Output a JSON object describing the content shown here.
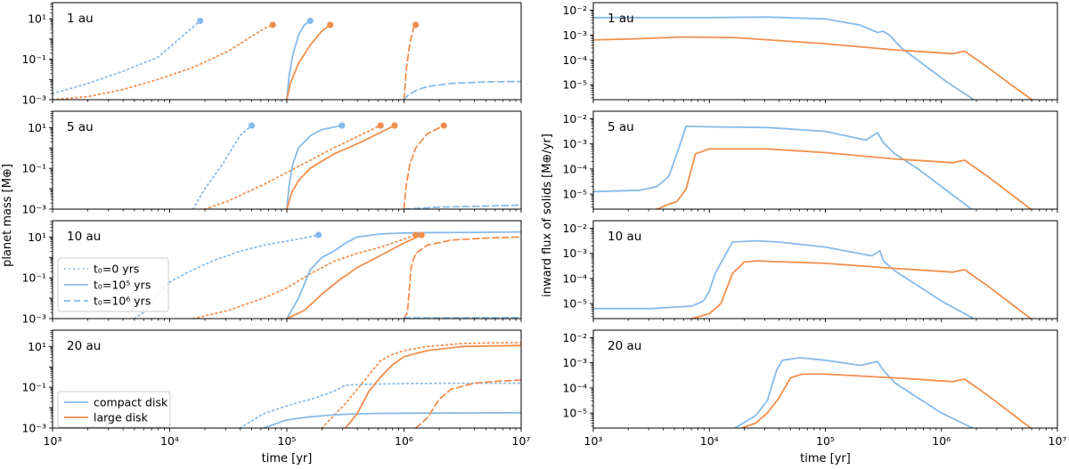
{
  "colors": {
    "compact": "#85bbea",
    "large": "#f28e4c"
  },
  "left": {
    "ylabel": "planet mass [M⊕]",
    "xlabel": "time [yr]",
    "xticks": [
      "10³",
      "10⁴",
      "10⁵",
      "10⁶",
      "10⁷"
    ],
    "yticks": [
      "10⁻³",
      "10⁻¹",
      "10¹"
    ],
    "xlim_log10": [
      3,
      7
    ],
    "ylim_log10": [
      -3,
      1.8
    ]
  },
  "right": {
    "ylabel": "inward flux of solids [M⊕/yr]",
    "xlabel": "time [yr]",
    "xticks": [
      "10³",
      "10⁴",
      "10⁵",
      "10⁶",
      "10⁷"
    ],
    "yticks": [
      "10⁻⁵",
      "10⁻⁴",
      "10⁻³",
      "10⁻²"
    ],
    "xlim_log10": [
      3,
      7
    ],
    "ylim_log10": [
      -5.6,
      -1.7
    ]
  },
  "legend_t0": [
    {
      "style": "dotted",
      "label": "t₀=0 yrs"
    },
    {
      "style": "solid",
      "label": "t₀=10⁵ yrs"
    },
    {
      "style": "dashed",
      "label": "t₀=10⁶ yrs"
    }
  ],
  "legend_disk": [
    {
      "series": "compact",
      "label": "compact disk"
    },
    {
      "series": "large",
      "label": "large disk"
    }
  ],
  "chart_data": [
    {
      "type": "line",
      "panel": "left",
      "title": "1 au",
      "series": [
        {
          "disk": "compact",
          "style": "dotted",
          "x": [
            3,
            3.3,
            3.6,
            3.9,
            4.2,
            4.26
          ],
          "y": [
            -2.7,
            -2.2,
            -1.6,
            -0.9,
            0.6,
            0.9
          ],
          "end_marker": true
        },
        {
          "disk": "large",
          "style": "dotted",
          "x": [
            3,
            3.3,
            3.6,
            3.9,
            4.2,
            4.5,
            4.8,
            4.88
          ],
          "y": [
            -3,
            -2.85,
            -2.5,
            -2,
            -1.4,
            -0.6,
            0.5,
            0.7
          ],
          "end_marker": true
        },
        {
          "disk": "compact",
          "style": "solid",
          "x": [
            5,
            5.02,
            5.05,
            5.1,
            5.15,
            5.2
          ],
          "y": [
            -3,
            -1.8,
            -0.8,
            0.2,
            0.7,
            0.9
          ],
          "end_marker": true
        },
        {
          "disk": "large",
          "style": "solid",
          "x": [
            5,
            5.03,
            5.1,
            5.2,
            5.3,
            5.37
          ],
          "y": [
            -3,
            -2.2,
            -1.2,
            -0.3,
            0.4,
            0.7
          ],
          "end_marker": true
        },
        {
          "disk": "large",
          "style": "dashed",
          "x": [
            6,
            6.02,
            6.05,
            6.08,
            6.1
          ],
          "y": [
            -3,
            -1.5,
            -0.2,
            0.5,
            0.7
          ],
          "end_marker": true
        },
        {
          "disk": "compact",
          "style": "dashed",
          "x": [
            6,
            6.03,
            6.1,
            6.2,
            6.4,
            6.7,
            7
          ],
          "y": [
            -3,
            -2.8,
            -2.55,
            -2.35,
            -2.2,
            -2.12,
            -2.1
          ],
          "end_marker": false
        }
      ]
    },
    {
      "type": "line",
      "panel": "left",
      "title": "5 au",
      "series": [
        {
          "disk": "compact",
          "style": "dotted",
          "x": [
            4.2,
            4.3,
            4.45,
            4.6,
            4.7
          ],
          "y": [
            -3,
            -2,
            -0.8,
            0.6,
            1.1
          ],
          "end_marker": true
        },
        {
          "disk": "large",
          "style": "dotted",
          "x": [
            4.3,
            4.5,
            4.8,
            5.1,
            5.4,
            5.8
          ],
          "y": [
            -3,
            -2.6,
            -1.8,
            -0.9,
            0,
            1.1
          ],
          "end_marker": true
        },
        {
          "disk": "compact",
          "style": "solid",
          "x": [
            5,
            5.02,
            5.05,
            5.1,
            5.2,
            5.3,
            5.47
          ],
          "y": [
            -3,
            -1.8,
            -0.8,
            0,
            0.6,
            0.9,
            1.1
          ],
          "end_marker": true
        },
        {
          "disk": "large",
          "style": "solid",
          "x": [
            5,
            5.04,
            5.1,
            5.2,
            5.4,
            5.6,
            5.92
          ],
          "y": [
            -3,
            -2.2,
            -1.6,
            -1,
            -0.3,
            0.2,
            1.1
          ],
          "end_marker": true
        },
        {
          "disk": "large",
          "style": "dashed",
          "x": [
            6,
            6.02,
            6.05,
            6.1,
            6.2,
            6.34
          ],
          "y": [
            -3,
            -1.8,
            -0.8,
            0,
            0.7,
            1.1
          ],
          "end_marker": true
        },
        {
          "disk": "compact",
          "style": "dashed",
          "x": [
            6,
            6.3,
            6.7,
            7
          ],
          "y": [
            -3,
            -2.9,
            -2.85,
            -2.8
          ],
          "end_marker": false
        }
      ]
    },
    {
      "type": "line",
      "panel": "left",
      "title": "10 au",
      "series": [
        {
          "disk": "compact",
          "style": "dotted",
          "x": [
            3.7,
            3.8,
            3.9,
            4,
            4.2,
            4.4,
            4.6,
            4.8,
            5.1,
            5.27
          ],
          "y": [
            -3,
            -2.6,
            -1.8,
            -1.2,
            -0.6,
            -0.1,
            0.3,
            0.6,
            0.9,
            1.1
          ],
          "end_marker": true
        },
        {
          "disk": "large",
          "style": "dotted",
          "x": [
            4.2,
            4.5,
            4.8,
            5,
            5.2,
            5.4,
            5.6,
            5.8,
            6.1
          ],
          "y": [
            -3,
            -2.6,
            -2,
            -1.5,
            -0.8,
            -0.2,
            0.2,
            0.5,
            1.1
          ],
          "end_marker": true
        },
        {
          "disk": "compact",
          "style": "solid",
          "x": [
            5,
            5.1,
            5.2,
            5.3,
            5.4,
            5.5,
            5.6,
            5.8,
            6,
            6.3,
            6.6,
            7
          ],
          "y": [
            -3,
            -2,
            -0.6,
            0,
            0.3,
            0.7,
            1,
            1.15,
            1.2,
            1.22,
            1.23,
            1.25
          ],
          "end_marker": false
        },
        {
          "disk": "large",
          "style": "solid",
          "x": [
            5,
            5.15,
            5.3,
            5.45,
            5.6,
            5.8,
            6,
            6.15
          ],
          "y": [
            -3,
            -2.6,
            -1.8,
            -1.1,
            -0.5,
            0.1,
            0.7,
            1.1
          ],
          "end_marker": true
        },
        {
          "disk": "large",
          "style": "dashed",
          "x": [
            6,
            6.03,
            6.06,
            6.1,
            6.2,
            6.4,
            6.7,
            7
          ],
          "y": [
            -3,
            -2.7,
            -0.5,
            0.2,
            0.6,
            0.85,
            0.95,
            1
          ],
          "end_marker": false
        },
        {
          "disk": "compact",
          "style": "dashed",
          "x": [
            6,
            6.5,
            7
          ],
          "y": [
            -2.97,
            -2.96,
            -2.95
          ],
          "end_marker": false
        }
      ]
    },
    {
      "type": "line",
      "panel": "left",
      "title": "20 au",
      "series": [
        {
          "disk": "compact",
          "style": "dotted",
          "x": [
            4.6,
            4.8,
            5,
            5.2,
            5.4,
            5.5,
            5.7,
            6,
            6.5,
            7
          ],
          "y": [
            -3,
            -2.3,
            -1.9,
            -1.6,
            -1.2,
            -0.9,
            -0.85,
            -0.82,
            -0.8,
            -0.8
          ],
          "end_marker": false
        },
        {
          "disk": "large",
          "style": "dotted",
          "x": [
            5.3,
            5.5,
            5.7,
            5.8,
            5.9,
            6,
            6.2,
            6.5,
            7
          ],
          "y": [
            -3,
            -1.8,
            -0.4,
            0.3,
            0.6,
            0.8,
            1,
            1.15,
            1.2
          ],
          "end_marker": false
        },
        {
          "disk": "compact",
          "style": "solid",
          "x": [
            4.8,
            5,
            5.2,
            5.4,
            5.6,
            5.8,
            6,
            6.5,
            7
          ],
          "y": [
            -3,
            -2.6,
            -2.45,
            -2.35,
            -2.3,
            -2.28,
            -2.27,
            -2.26,
            -2.25
          ],
          "end_marker": false
        },
        {
          "disk": "large",
          "style": "solid",
          "x": [
            5.5,
            5.6,
            5.7,
            5.8,
            5.9,
            6,
            6.2,
            6.5,
            7
          ],
          "y": [
            -3,
            -2.3,
            -1.2,
            -0.5,
            0.1,
            0.5,
            0.8,
            1,
            1.05
          ],
          "end_marker": false
        },
        {
          "disk": "large",
          "style": "dashed",
          "x": [
            6.1,
            6.2,
            6.3,
            6.4,
            6.6,
            6.8,
            7
          ],
          "y": [
            -3,
            -2.5,
            -1.6,
            -1.1,
            -0.8,
            -0.7,
            -0.65
          ],
          "end_marker": false
        }
      ]
    },
    {
      "type": "line",
      "panel": "right",
      "title": "1 au",
      "series": [
        {
          "disk": "compact",
          "style": "solid",
          "x": [
            3,
            4,
            4.5,
            5,
            5.3,
            5.45,
            5.5,
            5.55,
            5.65,
            5.85,
            6.05,
            6.28
          ],
          "y": [
            -2.3,
            -2.3,
            -2.28,
            -2.35,
            -2.6,
            -2.9,
            -2.85,
            -3,
            -3.5,
            -4.2,
            -4.9,
            -5.6
          ],
          "end_marker": false
        },
        {
          "disk": "large",
          "style": "solid",
          "x": [
            3,
            3.4,
            3.75,
            4.2,
            5,
            5.6,
            6.1,
            6.2,
            6.4,
            6.6,
            6.78
          ],
          "y": [
            -3.2,
            -3.15,
            -3.08,
            -3.1,
            -3.35,
            -3.6,
            -3.75,
            -3.65,
            -4.3,
            -5,
            -5.6
          ],
          "end_marker": false
        }
      ]
    },
    {
      "type": "line",
      "panel": "right",
      "title": "5 au",
      "series": [
        {
          "disk": "compact",
          "style": "solid",
          "x": [
            3,
            3.4,
            3.55,
            3.65,
            3.75,
            3.8,
            4,
            4.5,
            5,
            5.35,
            5.45,
            5.5,
            5.6,
            5.8,
            6,
            6.26
          ],
          "y": [
            -4.9,
            -4.85,
            -4.7,
            -4.3,
            -3,
            -2.3,
            -2.32,
            -2.35,
            -2.5,
            -2.85,
            -2.55,
            -2.95,
            -3.4,
            -4,
            -4.7,
            -5.6
          ],
          "end_marker": false
        },
        {
          "disk": "large",
          "style": "solid",
          "x": [
            3.55,
            3.65,
            3.72,
            3.8,
            3.88,
            4,
            4.5,
            5,
            5.6,
            6.1,
            6.2,
            6.4,
            6.6,
            6.77
          ],
          "y": [
            -5.6,
            -5.4,
            -5.3,
            -4.8,
            -3.4,
            -3.2,
            -3.2,
            -3.35,
            -3.6,
            -3.75,
            -3.65,
            -4.3,
            -5,
            -5.6
          ],
          "end_marker": false
        }
      ]
    },
    {
      "type": "line",
      "panel": "right",
      "title": "10 au",
      "series": [
        {
          "disk": "compact",
          "style": "solid",
          "x": [
            3,
            3.5,
            3.85,
            3.95,
            4,
            4.05,
            4.2,
            4.4,
            4.6,
            5,
            5.4,
            5.47,
            5.5,
            5.6,
            5.8,
            6,
            6.28
          ],
          "y": [
            -5.2,
            -5.2,
            -5.1,
            -4.9,
            -4.5,
            -3.8,
            -2.55,
            -2.5,
            -2.55,
            -2.75,
            -3.1,
            -2.9,
            -3.3,
            -3.7,
            -4.3,
            -4.9,
            -5.6
          ],
          "end_marker": false
        },
        {
          "disk": "large",
          "style": "solid",
          "x": [
            3.85,
            4,
            4.1,
            4.2,
            4.3,
            4.4,
            5,
            5.6,
            6.1,
            6.2,
            6.4,
            6.6,
            6.77
          ],
          "y": [
            -5.6,
            -5.4,
            -5,
            -3.8,
            -3.35,
            -3.3,
            -3.4,
            -3.6,
            -3.75,
            -3.65,
            -4.3,
            -5,
            -5.6
          ],
          "end_marker": false
        }
      ]
    },
    {
      "type": "line",
      "panel": "right",
      "title": "20 au",
      "series": [
        {
          "disk": "compact",
          "style": "solid",
          "x": [
            4.22,
            4.4,
            4.5,
            4.58,
            4.63,
            4.78,
            5,
            5.3,
            5.45,
            5.5,
            5.6,
            5.8,
            6,
            6.27
          ],
          "y": [
            -5.6,
            -5.1,
            -4.5,
            -3.3,
            -2.9,
            -2.8,
            -2.9,
            -3.1,
            -2.95,
            -3.3,
            -3.8,
            -4.4,
            -5,
            -5.6
          ],
          "end_marker": false
        },
        {
          "disk": "large",
          "style": "solid",
          "x": [
            4.28,
            4.4,
            4.5,
            4.6,
            4.7,
            4.8,
            5,
            5.6,
            6.1,
            6.2,
            6.4,
            6.6,
            6.77
          ],
          "y": [
            -5.6,
            -5.4,
            -5,
            -4.4,
            -3.6,
            -3.45,
            -3.45,
            -3.6,
            -3.75,
            -3.65,
            -4.3,
            -5,
            -5.6
          ],
          "end_marker": false
        }
      ]
    }
  ]
}
